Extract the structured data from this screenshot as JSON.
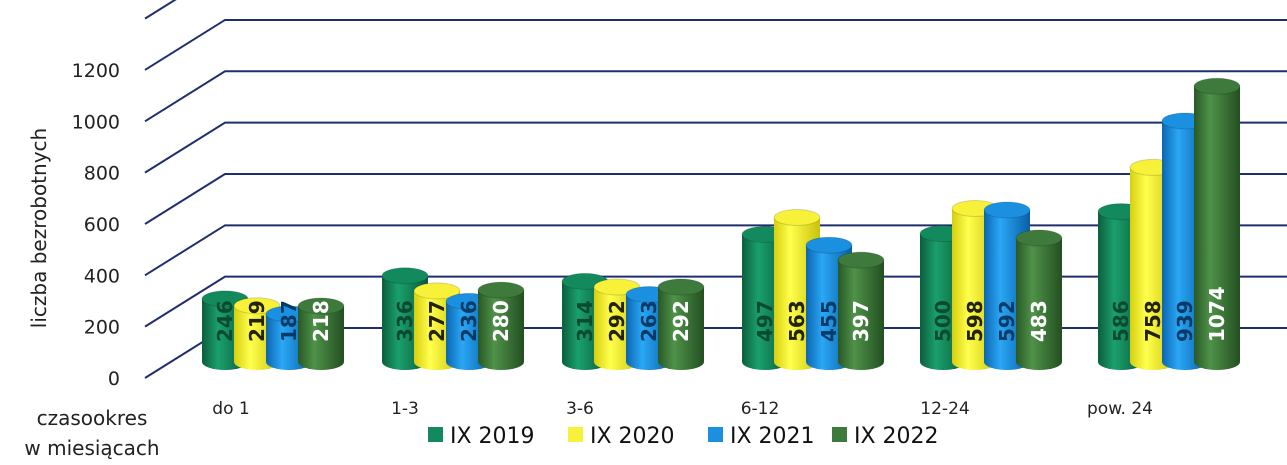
{
  "chart_data": {
    "type": "bar",
    "title": "",
    "xlabel": "czasookres\nw miesiącach",
    "ylabel": "liczba bezrobotnych",
    "ylim": [
      0,
      1200
    ],
    "yticks": [
      0,
      200,
      400,
      600,
      800,
      1000,
      1200
    ],
    "grid": true,
    "legend_position": "bottom",
    "categories": [
      "do 1",
      "1-3",
      "3-6",
      "6-12",
      "12-24",
      "pow. 24"
    ],
    "series": [
      {
        "name": "IX 2019",
        "color": "#138a5e",
        "values": [
          246,
          336,
          314,
          497,
          500,
          586
        ]
      },
      {
        "name": "IX 2020",
        "color": "#f7f13a",
        "values": [
          219,
          277,
          292,
          563,
          598,
          758
        ]
      },
      {
        "name": "IX 2021",
        "color": "#1b8fe0",
        "values": [
          187,
          236,
          263,
          455,
          592,
          939
        ]
      },
      {
        "name": "IX 2022",
        "color": "#3d7a3b",
        "values": [
          218,
          280,
          292,
          397,
          483,
          1074
        ]
      }
    ]
  }
}
